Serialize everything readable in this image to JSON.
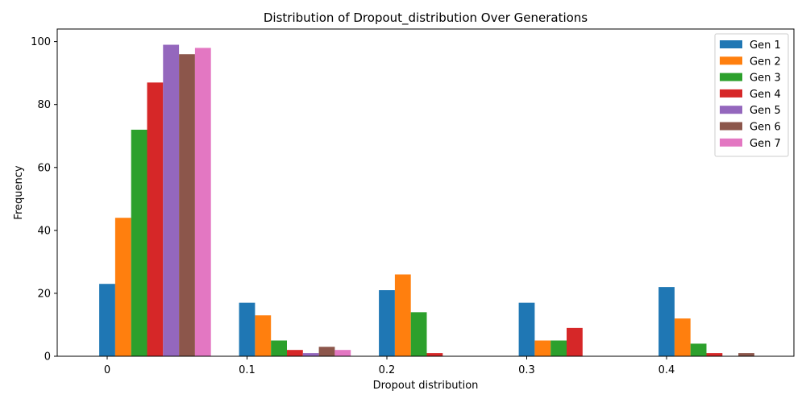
{
  "chart_data": {
    "type": "bar",
    "title": "Distribution of Dropout_distribution Over Generations",
    "xlabel": "Dropout distribution",
    "ylabel": "Frequency",
    "categories": [
      "0",
      "0.1",
      "0.2",
      "0.3",
      "0.4"
    ],
    "ylim": [
      0,
      104
    ],
    "yticks": [
      0,
      20,
      40,
      60,
      80,
      100
    ],
    "grid": false,
    "legend_position": "top-right",
    "series": [
      {
        "name": "Gen 1",
        "color": "#1f77b4",
        "values": [
          23,
          17,
          21,
          17,
          22
        ]
      },
      {
        "name": "Gen 2",
        "color": "#ff7f0e",
        "values": [
          44,
          13,
          26,
          5,
          12
        ]
      },
      {
        "name": "Gen 3",
        "color": "#2ca02c",
        "values": [
          72,
          5,
          14,
          5,
          4
        ]
      },
      {
        "name": "Gen 4",
        "color": "#d62728",
        "values": [
          87,
          2,
          1,
          9,
          1
        ]
      },
      {
        "name": "Gen 5",
        "color": "#9467bd",
        "values": [
          99,
          1,
          0,
          0,
          0
        ]
      },
      {
        "name": "Gen 6",
        "color": "#8c564b",
        "values": [
          96,
          3,
          0,
          0,
          1
        ]
      },
      {
        "name": "Gen 7",
        "color": "#e377c2",
        "values": [
          98,
          2,
          0,
          0,
          0
        ]
      }
    ]
  }
}
